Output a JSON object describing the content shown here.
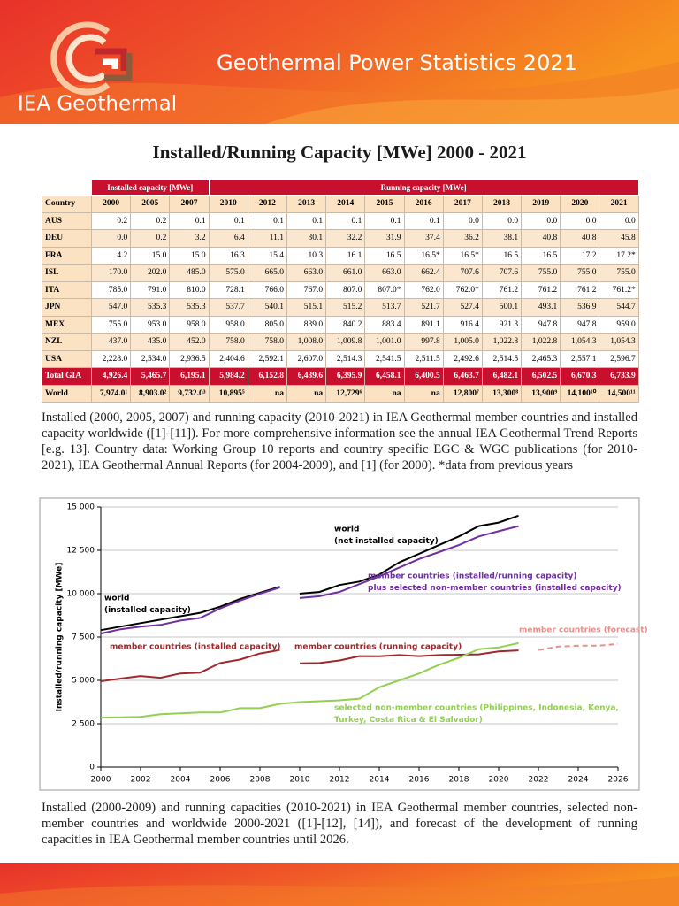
{
  "header": {
    "title": "Geothermal Power Statistics 2021",
    "brand": "IEA Geothermal"
  },
  "heading": "Installed/Running Capacity [MWe] 2000 - 2021",
  "table": {
    "groups": [
      "Installed capacity [MWe]",
      "Running capacity [MWe]"
    ],
    "columns": [
      "Country",
      "2000",
      "2005",
      "2007",
      "2010",
      "2012",
      "2013",
      "2014",
      "2015",
      "2016",
      "2017",
      "2018",
      "2019",
      "2020",
      "2021"
    ],
    "rows": [
      [
        "AUS",
        "0.2",
        "0.2",
        "0.1",
        "0.1",
        "0.1",
        "0.1",
        "0.1",
        "0.1",
        "0.1",
        "0.0",
        "0.0",
        "0.0",
        "0.0",
        "0.0"
      ],
      [
        "DEU",
        "0.0",
        "0.2",
        "3.2",
        "6.4",
        "11.1",
        "30.1",
        "32.2",
        "31.9",
        "37.4",
        "36.2",
        "38.1",
        "40.8",
        "40.8",
        "45.8"
      ],
      [
        "FRA",
        "4.2",
        "15.0",
        "15.0",
        "16.3",
        "15.4",
        "10.3",
        "16.1",
        "16.5",
        "16.5*",
        "16.5*",
        "16.5",
        "16.5",
        "17.2",
        "17.2*"
      ],
      [
        "ISL",
        "170.0",
        "202.0",
        "485.0",
        "575.0",
        "665.0",
        "663.0",
        "661.0",
        "663.0",
        "662.4",
        "707.6",
        "707.6",
        "755.0",
        "755.0",
        "755.0"
      ],
      [
        "ITA",
        "785.0",
        "791.0",
        "810.0",
        "728.1",
        "766.0",
        "767.0",
        "807.0",
        "807.0*",
        "762.0",
        "762.0*",
        "761.2",
        "761.2",
        "761.2",
        "761.2*"
      ],
      [
        "JPN",
        "547.0",
        "535.3",
        "535.3",
        "537.7",
        "540.1",
        "515.1",
        "515.2",
        "513.7",
        "521.7",
        "527.4",
        "500.1",
        "493.1",
        "536.9",
        "544.7"
      ],
      [
        "MEX",
        "755.0",
        "953.0",
        "958.0",
        "958.0",
        "805.0",
        "839.0",
        "840.2",
        "883.4",
        "891.1",
        "916.4",
        "921.3",
        "947.8",
        "947.8",
        "959.0"
      ],
      [
        "NZL",
        "437.0",
        "435.0",
        "452.0",
        "758.0",
        "758.0",
        "1,008.0",
        "1,009.8",
        "1,001.0",
        "997.8",
        "1,005.0",
        "1,022.8",
        "1,022.8",
        "1,054.3",
        "1,054.3"
      ],
      [
        "USA",
        "2,228.0",
        "2,534.0",
        "2,936.5",
        "2,404.6",
        "2,592.1",
        "2,607.0",
        "2,514.3",
        "2,541.5",
        "2,511.5",
        "2,492.6",
        "2,514.5",
        "2,465.3",
        "2,557.1",
        "2,596.7"
      ],
      [
        "Total GIA",
        "4,926.4",
        "5,465.7",
        "6,195.1",
        "5,984.2",
        "6,152.8",
        "6,439.6",
        "6,395.9",
        "6,458.1",
        "6,400.5",
        "6,463.7",
        "6,482.1",
        "6,502.5",
        "6,670.3",
        "6,733.9"
      ],
      [
        "World",
        "7,974.0¹",
        "8,903.0²",
        "9,732.0³",
        "10,895⁵",
        "na",
        "na",
        "12,729⁶",
        "na",
        "na",
        "12,800⁷",
        "13,300⁸",
        "13,900⁹",
        "14,100¹⁰",
        "14,500¹¹"
      ]
    ]
  },
  "caption_table": "Installed (2000, 2005, 2007) and running capacity (2010-2021) in IEA Geothermal member countries and installed capacity worldwide ([1]-[11]). For more comprehensive information see the annual IEA Geothermal Trend Reports [e.g. 13]. Country data: Working Group 10 reports and country specific EGC & WGC publications (for 2010-2021), IEA Geothermal Annual Reports (for 2004-2009), and [1] (for 2000). *data from previous years",
  "chart_data": {
    "type": "line",
    "y_label": "Installed/running capacity [MWe]",
    "x": [
      2000,
      2001,
      2002,
      2003,
      2004,
      2005,
      2006,
      2007,
      2008,
      2009,
      2010,
      2011,
      2012,
      2013,
      2014,
      2015,
      2016,
      2017,
      2018,
      2019,
      2020,
      2021,
      2022,
      2023,
      2024,
      2025,
      2026
    ],
    "xlim": [
      2000,
      2026
    ],
    "xticks": [
      2000,
      2002,
      2004,
      2006,
      2008,
      2010,
      2012,
      2014,
      2016,
      2018,
      2020,
      2022,
      2024,
      2026
    ],
    "ylim": [
      0,
      15000
    ],
    "yticks": [
      0,
      {
        "value": 2500,
        "label": "2 500"
      },
      {
        "value": 5000,
        "label": "5 000"
      },
      {
        "value": 7500,
        "label": "7 500"
      },
      {
        "value": 10000,
        "label": "10 000"
      },
      {
        "value": 12500,
        "label": "12 500"
      },
      {
        "value": 15000,
        "label": "15 000"
      }
    ],
    "grid": true,
    "series": [
      {
        "label": [
          "world",
          "(installed capacity)"
        ],
        "color": "#000000",
        "values": [
          7900,
          8100,
          8300,
          8500,
          8700,
          8900,
          9250,
          9700,
          10050,
          10400,
          null,
          null,
          null,
          null,
          null,
          null,
          null,
          null,
          null,
          null,
          null,
          null,
          null,
          null,
          null,
          null,
          null
        ]
      },
      {
        "label": [
          "world",
          "(net installed capacity)"
        ],
        "color": "#000000",
        "values": [
          null,
          null,
          null,
          null,
          null,
          null,
          null,
          null,
          null,
          null,
          10000,
          10100,
          10500,
          10700,
          11100,
          11800,
          12300,
          12800,
          13300,
          13900,
          14100,
          14500,
          null,
          null,
          null,
          null,
          null
        ]
      },
      {
        "color": "#7030a0",
        "values": [
          7700,
          7950,
          8100,
          8200,
          8450,
          8600,
          9150,
          9600,
          10000,
          10350,
          null,
          null,
          null,
          null,
          null,
          null,
          null,
          null,
          null,
          null,
          null,
          null,
          null,
          null,
          null,
          null,
          null
        ]
      },
      {
        "label": [
          "member countries (installed/running capacity)",
          "plus selected non-member countries (installed capacity)"
        ],
        "color": "#7030a0",
        "values": [
          null,
          null,
          null,
          null,
          null,
          null,
          null,
          null,
          null,
          null,
          9750,
          9850,
          10100,
          10550,
          11000,
          11500,
          12000,
          12400,
          12800,
          13300,
          13600,
          13900,
          null,
          null,
          null,
          null,
          null
        ]
      },
      {
        "label": [
          "member countries (installed capacity)"
        ],
        "color": "#a0282d",
        "values": [
          4950,
          5100,
          5250,
          5150,
          5400,
          5450,
          6000,
          6200,
          6550,
          6750,
          null,
          null,
          null,
          null,
          null,
          null,
          null,
          null,
          null,
          null,
          null,
          null,
          null,
          null,
          null,
          null,
          null
        ]
      },
      {
        "label": [
          "member countries (running capacity)"
        ],
        "color": "#a0282d",
        "values": [
          null,
          null,
          null,
          null,
          null,
          null,
          null,
          null,
          null,
          null,
          5980,
          6000,
          6150,
          6400,
          6390,
          6460,
          6400,
          6460,
          6480,
          6500,
          6670,
          6730,
          null,
          null,
          null,
          null,
          null
        ]
      },
      {
        "label": [
          "member countries (forecast)"
        ],
        "color": "#e8908c",
        "dashed": true,
        "values": [
          null,
          null,
          null,
          null,
          null,
          null,
          null,
          null,
          null,
          null,
          null,
          null,
          null,
          null,
          null,
          null,
          null,
          null,
          null,
          null,
          null,
          null,
          6750,
          6950,
          7000,
          7000,
          7100
        ]
      },
      {
        "label": [
          "selected non-member countries (Philippines, Indonesia, Kenya,",
          "Turkey, Costa Rica & El Salvador)"
        ],
        "color": "#92d050",
        "values": [
          2850,
          2870,
          2900,
          3050,
          3100,
          3150,
          3150,
          3400,
          3400,
          3650,
          3750,
          3800,
          3850,
          3950,
          4600,
          5000,
          5400,
          5900,
          6300,
          6800,
          6900,
          7150,
          null,
          null,
          null,
          null,
          null
        ]
      }
    ]
  },
  "caption_chart": "Installed (2000-2009) and running capacities (2010-2021) in IEA Geothermal member countries, selected non-member countries and worldwide 2000-2021 ([1]-[12], [14]), and forecast of the development of running capacities in IEA Geothermal member countries until 2026."
}
